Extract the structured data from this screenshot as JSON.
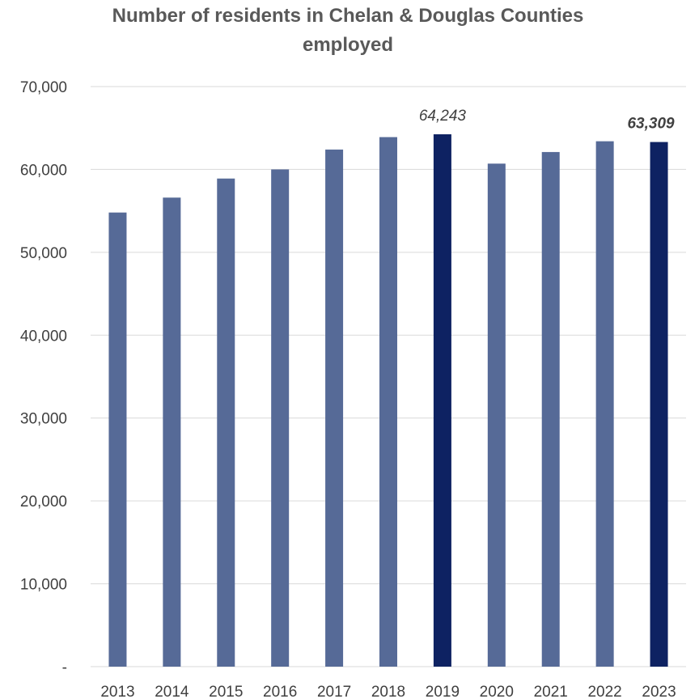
{
  "chart_data": {
    "type": "bar",
    "title_lines": [
      "Number of residents in Chelan & Douglas Counties",
      "employed"
    ],
    "categories": [
      "2013",
      "2014",
      "2015",
      "2016",
      "2017",
      "2018",
      "2019",
      "2020",
      "2021",
      "2022",
      "2023"
    ],
    "values": [
      54800,
      56600,
      58900,
      60000,
      62400,
      63900,
      64243,
      60700,
      62100,
      63400,
      63309
    ],
    "highlight": [
      false,
      false,
      false,
      false,
      false,
      false,
      true,
      false,
      false,
      false,
      true
    ],
    "ylim": [
      0,
      70000
    ],
    "yticks": [
      0,
      10000,
      20000,
      30000,
      40000,
      50000,
      60000,
      70000
    ],
    "ytick_labels": [
      "-",
      "10,000",
      "20,000",
      "30,000",
      "40,000",
      "50,000",
      "60,000",
      "70,000"
    ],
    "data_labels": [
      {
        "category": "2019",
        "text": "64,243",
        "bold": false
      },
      {
        "category": "2023",
        "text": "63,309",
        "bold": true
      }
    ],
    "grid": true,
    "colors": {
      "bar": "#566a97",
      "highlight": "#0e2262",
      "grid": "#d9d9d9"
    }
  }
}
